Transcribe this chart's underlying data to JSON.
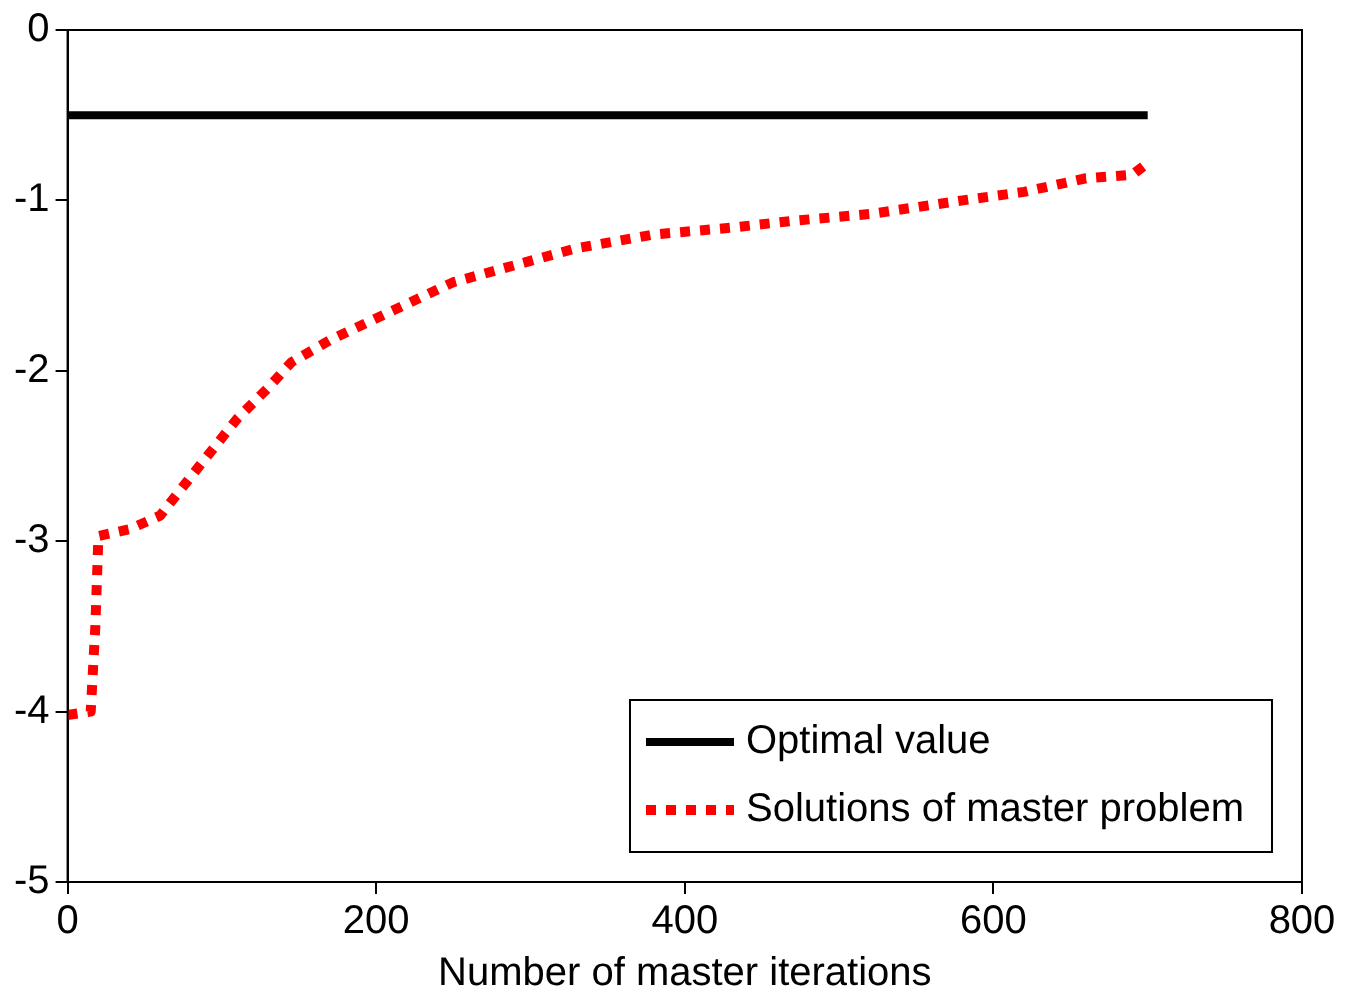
{
  "chart_data": {
    "type": "line",
    "xlabel": "Number of master iterations",
    "xlim": [
      0,
      800
    ],
    "xticks": [
      0,
      200,
      400,
      600,
      800
    ],
    "ylim": [
      -5,
      0
    ],
    "yticks": [
      -5,
      -4,
      -3,
      -2,
      -1,
      0
    ],
    "grid": false,
    "legend": "bottom right",
    "marker": "none",
    "series": [
      {
        "name": "Optimal value",
        "color": "#000000",
        "line_style": "solid",
        "x": [
          0,
          700
        ],
        "values": [
          -0.5,
          -0.5
        ]
      },
      {
        "name": "Solutions of master problem",
        "color": "#ff0000",
        "line_style": "dotted",
        "x": [
          0,
          15,
          18,
          20,
          40,
          60,
          80,
          95,
          110,
          130,
          145,
          170,
          210,
          250,
          290,
          330,
          380,
          430,
          470,
          520,
          580,
          620,
          660,
          690,
          700
        ],
        "values": [
          -4.02,
          -4.0,
          -3.5,
          -2.97,
          -2.93,
          -2.85,
          -2.62,
          -2.45,
          -2.28,
          -2.1,
          -1.95,
          -1.82,
          -1.65,
          -1.48,
          -1.38,
          -1.28,
          -1.2,
          -1.16,
          -1.12,
          -1.08,
          -1.0,
          -0.95,
          -0.87,
          -0.85,
          -0.78
        ]
      }
    ]
  }
}
